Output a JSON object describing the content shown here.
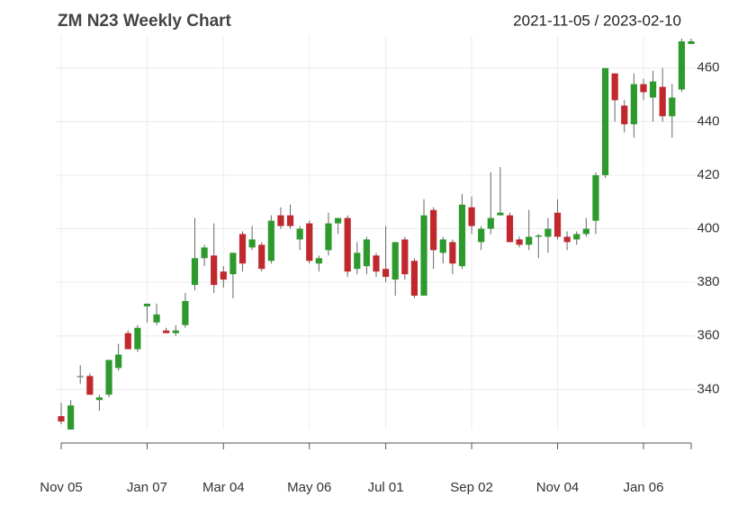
{
  "chart_data": {
    "type": "candlestick",
    "title": "ZM N23 Weekly Chart",
    "date_range": "2021-11-05 / 2023-02-10",
    "categories": [
      "Nov 05",
      null,
      null,
      null,
      null,
      null,
      null,
      null,
      null,
      "Jan 07",
      null,
      null,
      null,
      null,
      null,
      null,
      null,
      "Mar 04",
      null,
      null,
      null,
      null,
      null,
      null,
      null,
      null,
      "May 06",
      null,
      null,
      null,
      null,
      null,
      null,
      null,
      "Jul 01",
      null,
      null,
      null,
      null,
      null,
      null,
      null,
      null,
      "Sep 02",
      null,
      null,
      null,
      null,
      null,
      null,
      null,
      null,
      "Nov 04",
      null,
      null,
      null,
      null,
      null,
      null,
      null,
      null,
      "Jan 06",
      null,
      null,
      null,
      null,
      null
    ],
    "open": [
      330,
      325,
      345,
      345,
      336,
      338,
      348,
      361,
      355,
      371,
      365,
      362,
      361,
      364,
      379,
      389,
      390,
      384,
      383,
      398,
      393,
      394,
      388,
      405,
      405,
      396,
      402,
      387,
      392,
      402,
      404,
      385,
      386,
      390,
      385,
      381,
      396,
      388,
      375,
      407,
      391,
      395,
      386,
      408,
      395,
      400,
      405,
      405,
      396,
      394,
      397,
      397,
      406,
      397,
      396,
      398,
      403,
      420,
      458,
      446,
      439,
      454,
      449,
      453,
      442,
      452,
      469
    ],
    "high": [
      335,
      336,
      349,
      346,
      338,
      351,
      357,
      362,
      364,
      372,
      372,
      363,
      364,
      376,
      404,
      394,
      402,
      386,
      391,
      399,
      401,
      395,
      405,
      408,
      409,
      401,
      403,
      390,
      406,
      404,
      405,
      395,
      397,
      391,
      401,
      395,
      397,
      389,
      411,
      408,
      397,
      396,
      413,
      412,
      401,
      421,
      423,
      406,
      397,
      407,
      398,
      404,
      411,
      399,
      399,
      404,
      421,
      460,
      458,
      448,
      458,
      456,
      459,
      460,
      454,
      471,
      471
    ],
    "low": [
      327,
      325,
      342,
      338,
      332,
      337,
      347,
      355,
      354,
      365,
      364,
      361,
      360,
      363,
      377,
      386,
      376,
      378,
      374,
      384,
      392,
      384,
      387,
      400,
      400,
      392,
      387,
      384,
      390,
      398,
      382,
      383,
      383,
      382,
      380,
      375,
      381,
      374,
      375,
      385,
      387,
      383,
      385,
      398,
      392,
      398,
      405,
      395,
      393,
      392,
      389,
      391,
      396,
      392,
      394,
      397,
      398,
      419,
      440,
      436,
      434,
      448,
      440,
      440,
      434,
      451,
      469
    ],
    "close": [
      328,
      334,
      345,
      338,
      337,
      351,
      353,
      355,
      363,
      372,
      368,
      361,
      362,
      373,
      389,
      393,
      379,
      381,
      391,
      387,
      396,
      385,
      403,
      401,
      401,
      400,
      388,
      389,
      402,
      404,
      384,
      391,
      396,
      384,
      382,
      395,
      383,
      375,
      405,
      392,
      396,
      387,
      409,
      401,
      400,
      404,
      406,
      395,
      394,
      397,
      397.5,
      400,
      397,
      395,
      398,
      400,
      420,
      460,
      448,
      439,
      454,
      451,
      455,
      442,
      449,
      470,
      470
    ],
    "up_color": "#2e9a2e",
    "down_color": "#c0282d",
    "neutral_color": "#8a8a8a",
    "ylim": [
      325,
      472
    ],
    "yticks": [
      340,
      360,
      380,
      400,
      420,
      440,
      460
    ],
    "grid": true
  }
}
